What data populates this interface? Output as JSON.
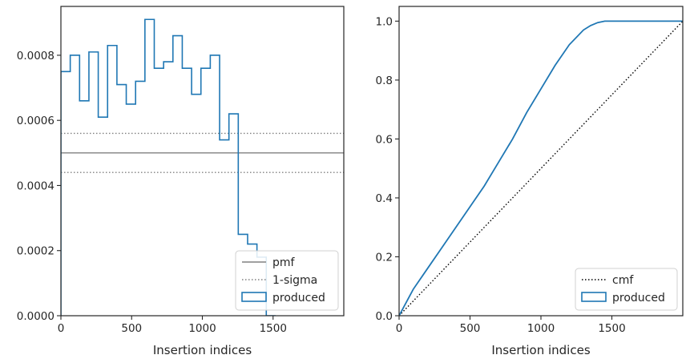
{
  "chart_data": [
    {
      "type": "step",
      "title": "",
      "xlabel": "Insertion indices",
      "ylabel": "",
      "xlim": [
        0,
        2000
      ],
      "ylim": [
        0,
        0.00095
      ],
      "xticks": [
        0,
        500,
        1000,
        1500
      ],
      "xtick_labels": [
        "0",
        "500",
        "1000",
        "1500"
      ],
      "yticks": [
        0,
        0.0002,
        0.0004,
        0.0006,
        0.0008
      ],
      "ytick_labels": [
        "0.0000",
        "0.0002",
        "0.0004",
        "0.0006",
        "0.0008"
      ],
      "grid": false,
      "legend": {
        "placement": "lower-right",
        "entries": [
          {
            "label": "pmf",
            "style": "solid",
            "color": "#808080"
          },
          {
            "label": "1-sigma",
            "style": "dotted",
            "color": "#808080"
          },
          {
            "label": "produced",
            "style": "patch",
            "color": "#1f77b4"
          }
        ]
      },
      "hlines": [
        {
          "name": "pmf",
          "y": 0.0005,
          "style": "solid",
          "color": "#808080"
        },
        {
          "name": "1-sigma",
          "y": 0.00056,
          "style": "dotted",
          "color": "#808080"
        },
        {
          "name": "1-sigma",
          "y": 0.00044,
          "style": "dotted",
          "color": "#808080"
        }
      ],
      "series": [
        {
          "name": "produced",
          "color": "#1f77b4",
          "bin_edges": [
            0,
            66,
            132,
            198,
            264,
            330,
            396,
            462,
            528,
            594,
            660,
            726,
            792,
            858,
            924,
            990,
            1056,
            1122,
            1188,
            1254,
            1320,
            1386,
            1452,
            1518
          ],
          "values": [
            0.00075,
            0.0008,
            0.00066,
            0.00081,
            0.00061,
            0.00083,
            0.00071,
            0.00065,
            0.00072,
            0.00091,
            0.00076,
            0.00078,
            0.00086,
            0.00076,
            0.00068,
            0.00076,
            0.0008,
            0.00054,
            0.00062,
            0.00025,
            0.00022,
            0.00018,
            0.0
          ]
        }
      ]
    },
    {
      "type": "line",
      "title": "",
      "xlabel": "Insertion indices",
      "ylabel": "",
      "xlim": [
        0,
        2000
      ],
      "ylim": [
        0,
        1.05
      ],
      "xticks": [
        0,
        500,
        1000,
        1500
      ],
      "xtick_labels": [
        "0",
        "500",
        "1000",
        "1500"
      ],
      "yticks": [
        0,
        0.2,
        0.4,
        0.6,
        0.8,
        1.0
      ],
      "ytick_labels": [
        "0.0",
        "0.2",
        "0.4",
        "0.6",
        "0.8",
        "1.0"
      ],
      "grid": false,
      "legend": {
        "placement": "lower-right",
        "entries": [
          {
            "label": "cmf",
            "style": "dotted",
            "color": "#000000"
          },
          {
            "label": "produced",
            "style": "patch",
            "color": "#1f77b4"
          }
        ]
      },
      "series": [
        {
          "name": "cmf",
          "style": "dotted",
          "color": "#000000",
          "x": [
            0,
            2000
          ],
          "y": [
            0,
            1.0
          ]
        },
        {
          "name": "produced",
          "style": "solid",
          "color": "#1f77b4",
          "x": [
            0,
            100,
            200,
            300,
            400,
            500,
            600,
            700,
            800,
            900,
            1000,
            1100,
            1200,
            1300,
            1350,
            1400,
            1450,
            2000
          ],
          "y": [
            0,
            0.09,
            0.16,
            0.23,
            0.3,
            0.37,
            0.44,
            0.52,
            0.6,
            0.69,
            0.77,
            0.85,
            0.92,
            0.97,
            0.985,
            0.995,
            1.0,
            1.0
          ]
        }
      ]
    }
  ]
}
